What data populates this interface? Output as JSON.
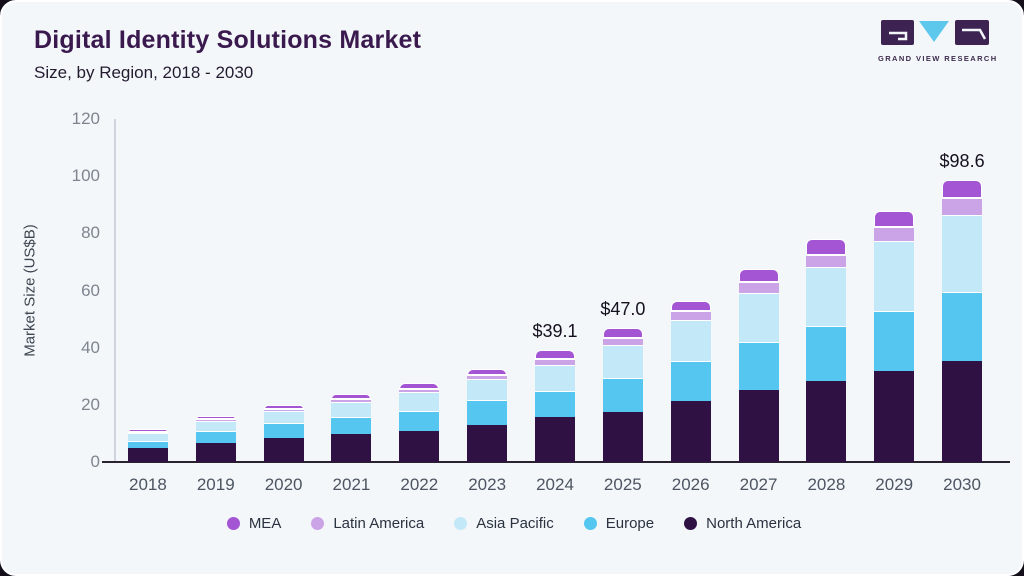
{
  "header": {
    "title": "Digital Identity Solutions Market",
    "subtitle": "Size, by Region, 2018 - 2030"
  },
  "logo": {
    "caption": "GRAND VIEW RESEARCH",
    "block_color": "#3d2352",
    "accent_color": "#5ec7ec"
  },
  "chart_data": {
    "type": "bar",
    "stacked": true,
    "title": "Digital Identity Solutions Market",
    "subtitle": "Size, by Region, 2018 - 2030",
    "ylabel": "Market Size (US$B)",
    "ylim": [
      0,
      120
    ],
    "yticks": [
      0,
      20,
      40,
      60,
      80,
      100,
      120
    ],
    "grid": false,
    "legend_position": "bottom",
    "categories": [
      "2018",
      "2019",
      "2020",
      "2021",
      "2022",
      "2023",
      "2024",
      "2025",
      "2026",
      "2027",
      "2028",
      "2029",
      "2030"
    ],
    "series": [
      {
        "name": "North America",
        "color": "#2f1243",
        "values": [
          5.0,
          6.6,
          8.3,
          9.7,
          11.0,
          13.1,
          15.8,
          17.5,
          21.5,
          25.2,
          28.5,
          31.8,
          35.2
        ]
      },
      {
        "name": "Europe",
        "color": "#55c6f0",
        "values": [
          2.5,
          4.2,
          5.2,
          5.9,
          7.0,
          8.6,
          9.0,
          11.8,
          14.0,
          16.7,
          19.0,
          21.2,
          24.2
        ]
      },
      {
        "name": "Asia Pacific",
        "color": "#c3e8f7",
        "values": [
          2.5,
          3.4,
          4.2,
          5.5,
          6.5,
          7.2,
          9.3,
          11.5,
          14.2,
          17.1,
          20.6,
          24.2,
          27.0
        ]
      },
      {
        "name": "Latin America",
        "color": "#cba4e8",
        "values": [
          0.6,
          0.8,
          1.0,
          1.1,
          1.2,
          1.6,
          1.9,
          2.6,
          3.3,
          4.0,
          4.5,
          4.9,
          5.9
        ]
      },
      {
        "name": "MEA",
        "color": "#a455d4",
        "values": [
          0.8,
          1.0,
          1.3,
          1.7,
          1.8,
          2.1,
          3.1,
          3.6,
          3.5,
          4.6,
          5.4,
          5.8,
          6.3
        ]
      }
    ],
    "totals": [
      11.4,
      16.0,
      20.0,
      23.9,
      27.5,
      32.6,
      39.1,
      47.0,
      56.5,
      67.6,
      78.0,
      87.9,
      98.6
    ],
    "annotations": [
      {
        "category": "2024",
        "text": "$39.1"
      },
      {
        "category": "2025",
        "text": "$47.0"
      },
      {
        "category": "2030",
        "text": "$98.6"
      }
    ],
    "legend": [
      "MEA",
      "Latin America",
      "Asia Pacific",
      "Europe",
      "North America"
    ]
  }
}
